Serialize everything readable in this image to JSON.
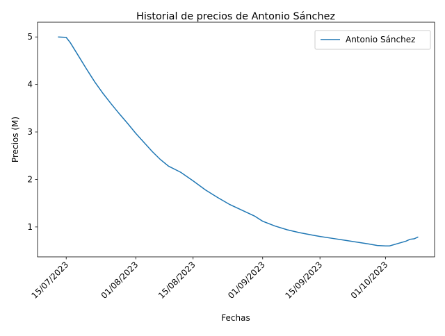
{
  "chart_data": {
    "type": "line",
    "title": "Historial de precios de Antonio Sánchez",
    "xlabel": "Fechas",
    "ylabel": "Precios (M)",
    "x": [
      "2023-07-13",
      "2023-07-15",
      "2023-07-16",
      "2023-07-18",
      "2023-07-20",
      "2023-07-22",
      "2023-07-24",
      "2023-07-26",
      "2023-07-28",
      "2023-07-30",
      "2023-08-01",
      "2023-08-03",
      "2023-08-05",
      "2023-08-07",
      "2023-08-09",
      "2023-08-12",
      "2023-08-15",
      "2023-08-18",
      "2023-08-21",
      "2023-08-24",
      "2023-08-27",
      "2023-08-30",
      "2023-09-01",
      "2023-09-04",
      "2023-09-07",
      "2023-09-10",
      "2023-09-13",
      "2023-09-15",
      "2023-09-18",
      "2023-09-21",
      "2023-09-24",
      "2023-09-27",
      "2023-09-29",
      "2023-10-01",
      "2023-10-02",
      "2023-10-04",
      "2023-10-06",
      "2023-10-07",
      "2023-10-08",
      "2023-10-09"
    ],
    "series": [
      {
        "name": "Antonio Sánchez",
        "color": "#1f77b4",
        "values": [
          5.0,
          4.99,
          4.88,
          4.6,
          4.32,
          4.05,
          3.81,
          3.59,
          3.38,
          3.18,
          2.97,
          2.78,
          2.59,
          2.42,
          2.28,
          2.15,
          1.97,
          1.78,
          1.62,
          1.47,
          1.35,
          1.23,
          1.12,
          1.02,
          0.94,
          0.88,
          0.83,
          0.8,
          0.76,
          0.72,
          0.68,
          0.64,
          0.61,
          0.6,
          0.6,
          0.65,
          0.7,
          0.74,
          0.75,
          0.79
        ]
      }
    ],
    "xlim": [
      "2023-07-08",
      "2023-10-13"
    ],
    "xticks": [
      {
        "value": "2023-07-15",
        "label": "15/07/2023"
      },
      {
        "value": "2023-08-01",
        "label": "01/08/2023"
      },
      {
        "value": "2023-08-15",
        "label": "15/08/2023"
      },
      {
        "value": "2023-09-01",
        "label": "01/09/2023"
      },
      {
        "value": "2023-09-15",
        "label": "15/09/2023"
      },
      {
        "value": "2023-10-01",
        "label": "01/10/2023"
      }
    ],
    "ylim": [
      0.37,
      5.31
    ],
    "yticks": [
      1,
      2,
      3,
      4,
      5
    ],
    "legend": "upper right",
    "grid": false
  }
}
